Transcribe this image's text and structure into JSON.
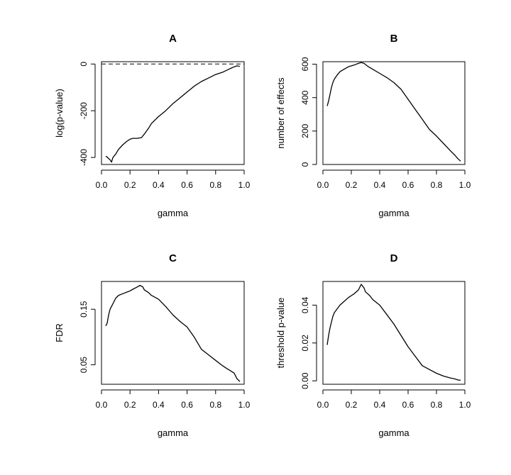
{
  "chart_data": [
    {
      "type": "line",
      "title": "A",
      "xlabel": "gamma",
      "ylabel": "log(p-value)",
      "xlim": [
        0.0,
        1.0
      ],
      "ylim": [
        -430,
        10
      ],
      "xticks": [
        0.0,
        0.2,
        0.4,
        0.6,
        0.8,
        1.0
      ],
      "xtick_labels": [
        "0.0",
        "0.2",
        "0.4",
        "0.6",
        "0.8",
        "1.0"
      ],
      "yticks": [
        0,
        -200,
        -400
      ],
      "ytick_labels": [
        "0",
        "-200",
        "-400"
      ],
      "ytick_rotated": true,
      "reference_line": {
        "y": 0,
        "style": "dashed"
      },
      "series": [
        {
          "x": [
            0.03,
            0.04,
            0.05,
            0.06,
            0.07,
            0.08,
            0.1,
            0.12,
            0.15,
            0.18,
            0.2,
            0.22,
            0.25,
            0.28,
            0.3,
            0.33,
            0.35,
            0.4,
            0.45,
            0.5,
            0.55,
            0.6,
            0.65,
            0.7,
            0.75,
            0.8,
            0.85,
            0.9,
            0.93,
            0.95,
            0.97
          ],
          "y": [
            -395,
            -398,
            -405,
            -410,
            -420,
            -400,
            -385,
            -365,
            -345,
            -330,
            -322,
            -318,
            -318,
            -315,
            -300,
            -275,
            -255,
            -225,
            -200,
            -170,
            -145,
            -120,
            -95,
            -75,
            -60,
            -45,
            -35,
            -20,
            -12,
            -8,
            -10
          ]
        }
      ]
    },
    {
      "type": "line",
      "title": "B",
      "xlabel": "gamma",
      "ylabel": "number of effects",
      "xlim": [
        0.0,
        1.0
      ],
      "ylim": [
        0,
        615
      ],
      "xticks": [
        0.0,
        0.2,
        0.4,
        0.6,
        0.8,
        1.0
      ],
      "xtick_labels": [
        "0.0",
        "0.2",
        "0.4",
        "0.6",
        "0.8",
        "1.0"
      ],
      "yticks": [
        0,
        200,
        400,
        600
      ],
      "ytick_labels": [
        "0",
        "200",
        "400",
        "600"
      ],
      "ytick_rotated": true,
      "series": [
        {
          "x": [
            0.03,
            0.04,
            0.05,
            0.06,
            0.07,
            0.08,
            0.1,
            0.12,
            0.15,
            0.18,
            0.2,
            0.22,
            0.25,
            0.27,
            0.29,
            0.3,
            0.32,
            0.35,
            0.4,
            0.45,
            0.5,
            0.55,
            0.6,
            0.65,
            0.7,
            0.75,
            0.8,
            0.85,
            0.9,
            0.93,
            0.95,
            0.97
          ],
          "y": [
            350,
            380,
            420,
            460,
            490,
            510,
            535,
            555,
            570,
            585,
            590,
            595,
            605,
            610,
            605,
            598,
            585,
            570,
            545,
            520,
            490,
            450,
            390,
            330,
            270,
            210,
            170,
            125,
            80,
            55,
            35,
            20
          ]
        }
      ]
    },
    {
      "type": "line",
      "title": "C",
      "xlabel": "gamma",
      "ylabel": "FDR",
      "xlim": [
        0.0,
        1.0
      ],
      "ylim": [
        0.015,
        0.2
      ],
      "xticks": [
        0.0,
        0.2,
        0.4,
        0.6,
        0.8,
        1.0
      ],
      "xtick_labels": [
        "0.0",
        "0.2",
        "0.4",
        "0.6",
        "0.8",
        "1.0"
      ],
      "yticks": [
        0.05,
        0.15
      ],
      "ytick_labels": [
        "0.05",
        "0.15"
      ],
      "ytick_rotated": true,
      "series": [
        {
          "x": [
            0.03,
            0.04,
            0.05,
            0.06,
            0.07,
            0.08,
            0.1,
            0.12,
            0.15,
            0.18,
            0.2,
            0.22,
            0.25,
            0.27,
            0.29,
            0.3,
            0.33,
            0.35,
            0.4,
            0.45,
            0.5,
            0.55,
            0.6,
            0.65,
            0.7,
            0.75,
            0.8,
            0.85,
            0.88,
            0.9,
            0.93,
            0.95,
            0.97
          ],
          "y": [
            0.12,
            0.125,
            0.14,
            0.15,
            0.155,
            0.16,
            0.17,
            0.175,
            0.178,
            0.181,
            0.183,
            0.186,
            0.19,
            0.193,
            0.19,
            0.185,
            0.18,
            0.175,
            0.168,
            0.155,
            0.14,
            0.128,
            0.118,
            0.1,
            0.078,
            0.068,
            0.058,
            0.048,
            0.043,
            0.04,
            0.035,
            0.025,
            0.02
          ]
        }
      ]
    },
    {
      "type": "line",
      "title": "D",
      "xlabel": "gamma",
      "ylabel": "threshold p-value",
      "xlim": [
        0.0,
        1.0
      ],
      "ylim": [
        -0.0018,
        0.0525
      ],
      "xticks": [
        0.0,
        0.2,
        0.4,
        0.6,
        0.8,
        1.0
      ],
      "xtick_labels": [
        "0.0",
        "0.2",
        "0.4",
        "0.6",
        "0.8",
        "1.0"
      ],
      "yticks": [
        0.0,
        0.02,
        0.04
      ],
      "ytick_labels": [
        "0.00",
        "0.02",
        "0.04"
      ],
      "ytick_rotated": true,
      "series": [
        {
          "x": [
            0.03,
            0.04,
            0.05,
            0.06,
            0.07,
            0.08,
            0.1,
            0.12,
            0.15,
            0.18,
            0.2,
            0.22,
            0.25,
            0.27,
            0.29,
            0.3,
            0.33,
            0.35,
            0.4,
            0.45,
            0.5,
            0.55,
            0.6,
            0.65,
            0.7,
            0.75,
            0.8,
            0.85,
            0.9,
            0.93,
            0.95,
            0.97
          ],
          "y": [
            0.019,
            0.024,
            0.028,
            0.031,
            0.034,
            0.036,
            0.038,
            0.04,
            0.042,
            0.044,
            0.045,
            0.046,
            0.048,
            0.051,
            0.049,
            0.047,
            0.045,
            0.043,
            0.04,
            0.035,
            0.03,
            0.024,
            0.018,
            0.013,
            0.008,
            0.006,
            0.004,
            0.0025,
            0.0015,
            0.001,
            0.0005,
            0.0003
          ]
        }
      ]
    }
  ]
}
